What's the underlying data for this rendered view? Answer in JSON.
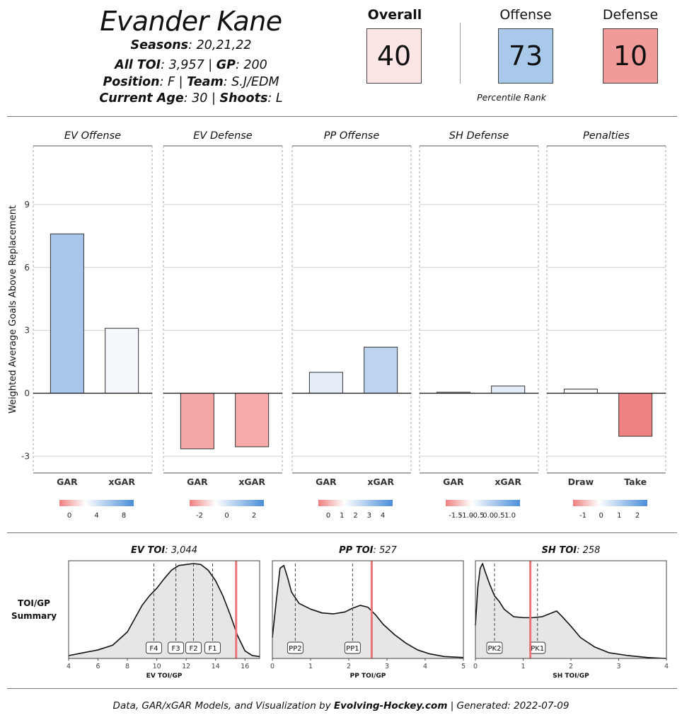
{
  "header": {
    "player_name": "Evander Kane",
    "seasons_label": "Seasons",
    "seasons_value": ": 20,21,22",
    "toi_label": "All TOI",
    "toi_value": ": 3,957 | ",
    "gp_label": "GP",
    "gp_value": ": 200",
    "position_label": "Position",
    "position_value": ": F | ",
    "team_label": "Team",
    "team_value": ": S.J/EDM",
    "age_label": "Current Age",
    "age_value": ": 30 | ",
    "shoots_label": "Shoots",
    "shoots_value": ": L"
  },
  "ratings": {
    "overall_label": "Overall",
    "overall_value": "40",
    "overall_color": "#fbe5e5",
    "offense_label": "Offense",
    "offense_value": "73",
    "offense_color": "#a9c9ea",
    "defense_label": "Defense",
    "defense_value": "10",
    "defense_color": "#f19a9a",
    "caption": "Percentile Rank"
  },
  "chart_data": [
    {
      "type": "bar",
      "ylabel": "Weighted Average Goals Above Replacement",
      "ylim": [
        -3.8,
        11.8
      ],
      "yticks": [
        -3,
        0,
        3,
        6,
        9
      ],
      "grid": true,
      "panels": [
        {
          "title": "EV Offense",
          "categories": [
            "GAR",
            "xGAR"
          ],
          "values": [
            7.6,
            3.1
          ],
          "colors": [
            "#a9c7ea",
            "#f5f8fd"
          ],
          "legend": {
            "ticks": [
              "0",
              "4",
              "8"
            ]
          }
        },
        {
          "title": "EV Defense",
          "categories": [
            "GAR",
            "xGAR"
          ],
          "values": [
            -2.65,
            -2.55
          ],
          "colors": [
            "#f5a6a6",
            "#f7abab"
          ],
          "legend": {
            "ticks": [
              "-2",
              "0",
              "2"
            ]
          }
        },
        {
          "title": "PP Offense",
          "categories": [
            "GAR",
            "xGAR"
          ],
          "values": [
            1.0,
            2.2
          ],
          "colors": [
            "#e4edf8",
            "#bcd4ef"
          ],
          "legend": {
            "ticks": [
              "0",
              "1",
              "2",
              "3",
              "4"
            ]
          }
        },
        {
          "title": "SH Defense",
          "categories": [
            "GAR",
            "xGAR"
          ],
          "values": [
            0.05,
            0.35
          ],
          "colors": [
            "#f6f6f6",
            "#e2ebf7"
          ],
          "legend": {
            "ticks": [
              "-1.5",
              "-1.0",
              "-0.5",
              "0.0",
              "0.5",
              "1.0"
            ]
          }
        },
        {
          "title": "Penalties",
          "categories": [
            "Draw",
            "Take"
          ],
          "values": [
            0.2,
            -2.05
          ],
          "colors": [
            "#fbfbfb",
            "#ef8383"
          ],
          "legend": {
            "ticks": [
              "-1",
              "0",
              "1",
              "2"
            ]
          }
        }
      ]
    },
    {
      "type": "area",
      "title": "TOI/GP Summary",
      "panels": [
        {
          "title_label": "EV TOI",
          "title_value": ": 3,044",
          "xlabel": "EV TOI/GP",
          "xlim": [
            4,
            17
          ],
          "xticks": [
            "4",
            "6",
            "8",
            "10",
            "12",
            "14",
            "16"
          ],
          "density_x": [
            4,
            5,
            6,
            7,
            8,
            8.5,
            9,
            9.5,
            10,
            10.5,
            11,
            11.5,
            12,
            12.5,
            13,
            13.5,
            14,
            14.5,
            15,
            15.5,
            16,
            16.5,
            17
          ],
          "density_y": [
            0.03,
            0.06,
            0.09,
            0.14,
            0.28,
            0.42,
            0.56,
            0.66,
            0.74,
            0.84,
            0.93,
            0.98,
            0.99,
            1.0,
            0.99,
            0.93,
            0.82,
            0.66,
            0.46,
            0.24,
            0.08,
            0.03,
            0.02
          ],
          "markers": [
            {
              "label": "F4",
              "x": 9.8
            },
            {
              "label": "F3",
              "x": 11.3
            },
            {
              "label": "F2",
              "x": 12.5
            },
            {
              "label": "F1",
              "x": 13.8
            }
          ],
          "player_value": 15.4
        },
        {
          "title_label": "PP TOI",
          "title_value": ": 527",
          "xlabel": "PP TOI/GP",
          "xlim": [
            0,
            5
          ],
          "xticks": [
            "0",
            "1",
            "2",
            "3",
            "4",
            "5"
          ],
          "density_x": [
            0,
            0.1,
            0.2,
            0.3,
            0.4,
            0.5,
            0.7,
            1.0,
            1.3,
            1.6,
            1.9,
            2.1,
            2.3,
            2.5,
            2.7,
            2.9,
            3.2,
            3.5,
            3.8,
            4.1,
            4.5,
            5.0
          ],
          "density_y": [
            0.22,
            0.6,
            0.95,
            0.98,
            0.85,
            0.7,
            0.58,
            0.52,
            0.48,
            0.47,
            0.49,
            0.53,
            0.56,
            0.54,
            0.46,
            0.36,
            0.25,
            0.16,
            0.09,
            0.05,
            0.02,
            0.01
          ],
          "markers": [
            {
              "label": "PP2",
              "x": 0.6
            },
            {
              "label": "PP1",
              "x": 2.1
            }
          ],
          "player_value": 2.6
        },
        {
          "title_label": "SH TOI",
          "title_value": ": 258",
          "xlabel": "SH TOI/GP",
          "xlim": [
            0,
            4
          ],
          "xticks": [
            "0",
            "1",
            "2",
            "3",
            "4"
          ],
          "density_x": [
            0,
            0.05,
            0.1,
            0.15,
            0.2,
            0.3,
            0.4,
            0.5,
            0.6,
            0.8,
            1.0,
            1.2,
            1.4,
            1.6,
            1.7,
            1.8,
            2.0,
            2.2,
            2.5,
            2.8,
            3.2,
            3.6,
            4.0
          ],
          "density_y": [
            0.35,
            0.75,
            0.95,
            1.0,
            0.92,
            0.78,
            0.66,
            0.6,
            0.52,
            0.44,
            0.43,
            0.43,
            0.44,
            0.48,
            0.5,
            0.45,
            0.34,
            0.22,
            0.12,
            0.06,
            0.03,
            0.01,
            0.0
          ],
          "markers": [
            {
              "label": "PK2",
              "x": 0.4
            },
            {
              "label": "PK1",
              "x": 1.3
            }
          ],
          "player_value": 1.15
        }
      ]
    }
  ],
  "footer": {
    "prefix": "Data, GAR/xGAR Models, and Visualization by ",
    "brand": "Evolving-Hockey.com",
    "suffix": "  | Generated:  2022-07-09"
  },
  "colors": {
    "player_line": "#e8757a",
    "density_fill": "#e6e6e6",
    "legend_neg": "#ef7f7f",
    "legend_pos": "#4a8ed9"
  }
}
